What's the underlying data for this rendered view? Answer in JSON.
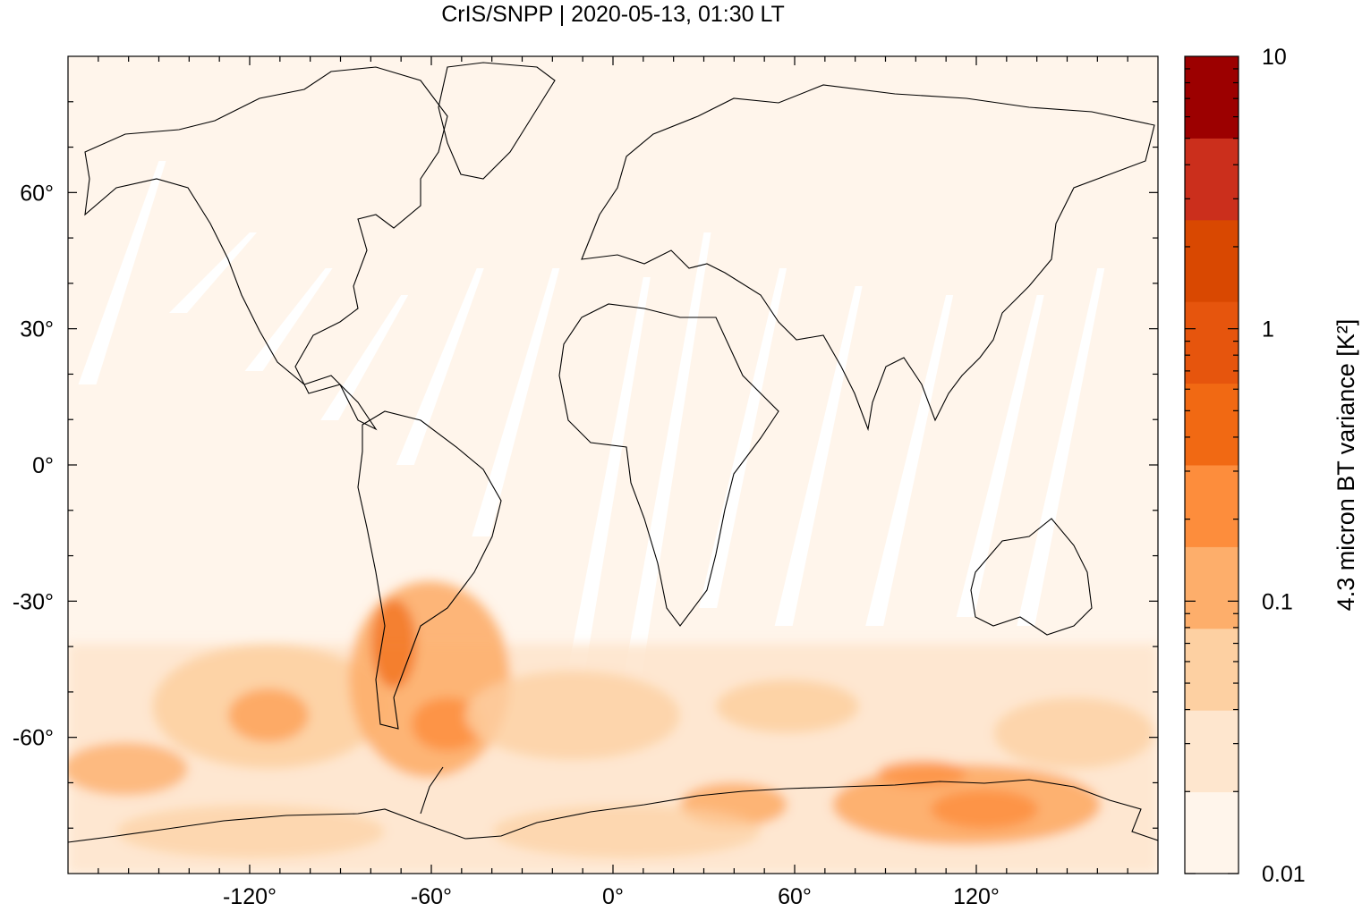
{
  "title": "CrIS/SNPP | 2020-05-13, 01:30 LT",
  "map": {
    "projection": "equirectangular",
    "lon_range": [
      -180,
      180
    ],
    "lat_range": [
      -90,
      90
    ],
    "background_color": "#fff5eb",
    "gap_color": "#ffffff",
    "coastline_color": "#000000"
  },
  "axes": {
    "x_ticks": [
      {
        "value": -120,
        "label": "-120°"
      },
      {
        "value": -60,
        "label": "-60°"
      },
      {
        "value": 0,
        "label": "0°"
      },
      {
        "value": 60,
        "label": "60°"
      },
      {
        "value": 120,
        "label": "120°"
      }
    ],
    "y_ticks": [
      {
        "value": 60,
        "label": "60°"
      },
      {
        "value": 30,
        "label": "30°"
      },
      {
        "value": 0,
        "label": "0°"
      },
      {
        "value": -30,
        "label": "-30°"
      },
      {
        "value": -60,
        "label": "-60°"
      }
    ]
  },
  "colorbar": {
    "label": "4.3 micron BT variance [K²]",
    "scale": "log",
    "range": [
      0.01,
      10
    ],
    "tick_labels": [
      {
        "value": 10,
        "label": "10"
      },
      {
        "value": 1,
        "label": "1"
      },
      {
        "value": 0.1,
        "label": "0.1"
      },
      {
        "value": 0.01,
        "label": "0.01"
      }
    ],
    "bands": [
      "#fff5eb",
      "#fee6ce",
      "#fdd0a2",
      "#fdae6b",
      "#fd8d3c",
      "#f16913",
      "#e6550d",
      "#d94801",
      "#cb2f1c",
      "#9c0000"
    ]
  }
}
